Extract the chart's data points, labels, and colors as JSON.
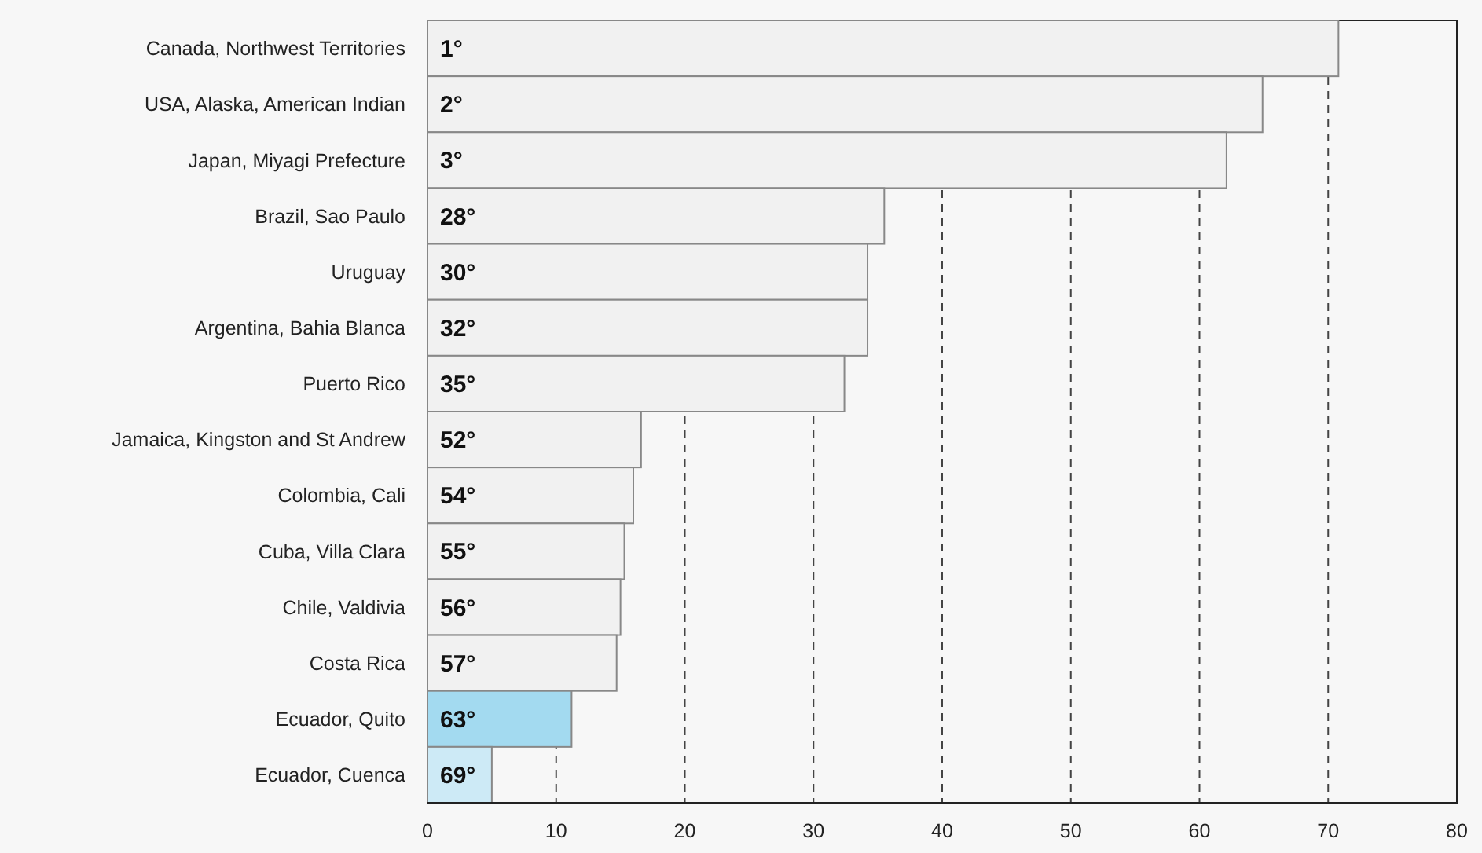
{
  "chart_data": {
    "type": "bar",
    "orientation": "horizontal",
    "categories": [
      "Canada, Northwest Territories",
      "USA, Alaska, American Indian",
      "Japan, Miyagi Prefecture",
      "Brazil, Sao Paulo",
      "Uruguay",
      "Argentina, Bahia Blanca",
      "Puerto Rico",
      "Jamaica, Kingston and St Andrew",
      "Colombia, Cali",
      "Cuba, Villa Clara",
      "Chile, Valdivia",
      "Costa Rica",
      "Ecuador, Quito",
      "Ecuador, Cuenca"
    ],
    "values": [
      70.8,
      64.9,
      62.1,
      35.5,
      34.2,
      34.2,
      32.4,
      16.6,
      16.0,
      15.3,
      15.0,
      14.7,
      11.2,
      5.0
    ],
    "colors": [
      "#f1f1f1",
      "#f1f1f1",
      "#f1f1f1",
      "#f1f1f1",
      "#f1f1f1",
      "#f1f1f1",
      "#f1f1f1",
      "#f1f1f1",
      "#f1f1f1",
      "#f1f1f1",
      "#f1f1f1",
      "#f1f1f1",
      "#a3daf0",
      "#cdeaf6"
    ],
    "xlim": [
      0,
      80
    ],
    "xticks": [
      0,
      10,
      20,
      30,
      40,
      50,
      60,
      70,
      80
    ],
    "grid": "x",
    "annotations": [
      {
        "text": "1°",
        "y": "Canada, Northwest Territories"
      },
      {
        "text": "2°",
        "y": "USA, Alaska, American Indian"
      },
      {
        "text": "3°",
        "y": "Japan, Miyagi Prefecture"
      },
      {
        "text": "28°",
        "y": "Brazil, Sao Paulo"
      },
      {
        "text": "30°",
        "y": "Uruguay"
      },
      {
        "text": "32°",
        "y": "Argentina, Bahia Blanca"
      },
      {
        "text": "35°",
        "y": "Puerto Rico"
      },
      {
        "text": "52°",
        "y": "Jamaica, Kingston and St Andrew"
      },
      {
        "text": "54°",
        "y": "Colombia, Cali"
      },
      {
        "text": "55°",
        "y": "Cuba, Villa Clara"
      },
      {
        "text": "56°",
        "y": "Chile, Valdivia"
      },
      {
        "text": "57°",
        "y": "Costa Rica"
      },
      {
        "text": "63°",
        "y": "Ecuador, Quito"
      },
      {
        "text": "69°",
        "y": "Ecuador, Cuenca"
      }
    ]
  }
}
